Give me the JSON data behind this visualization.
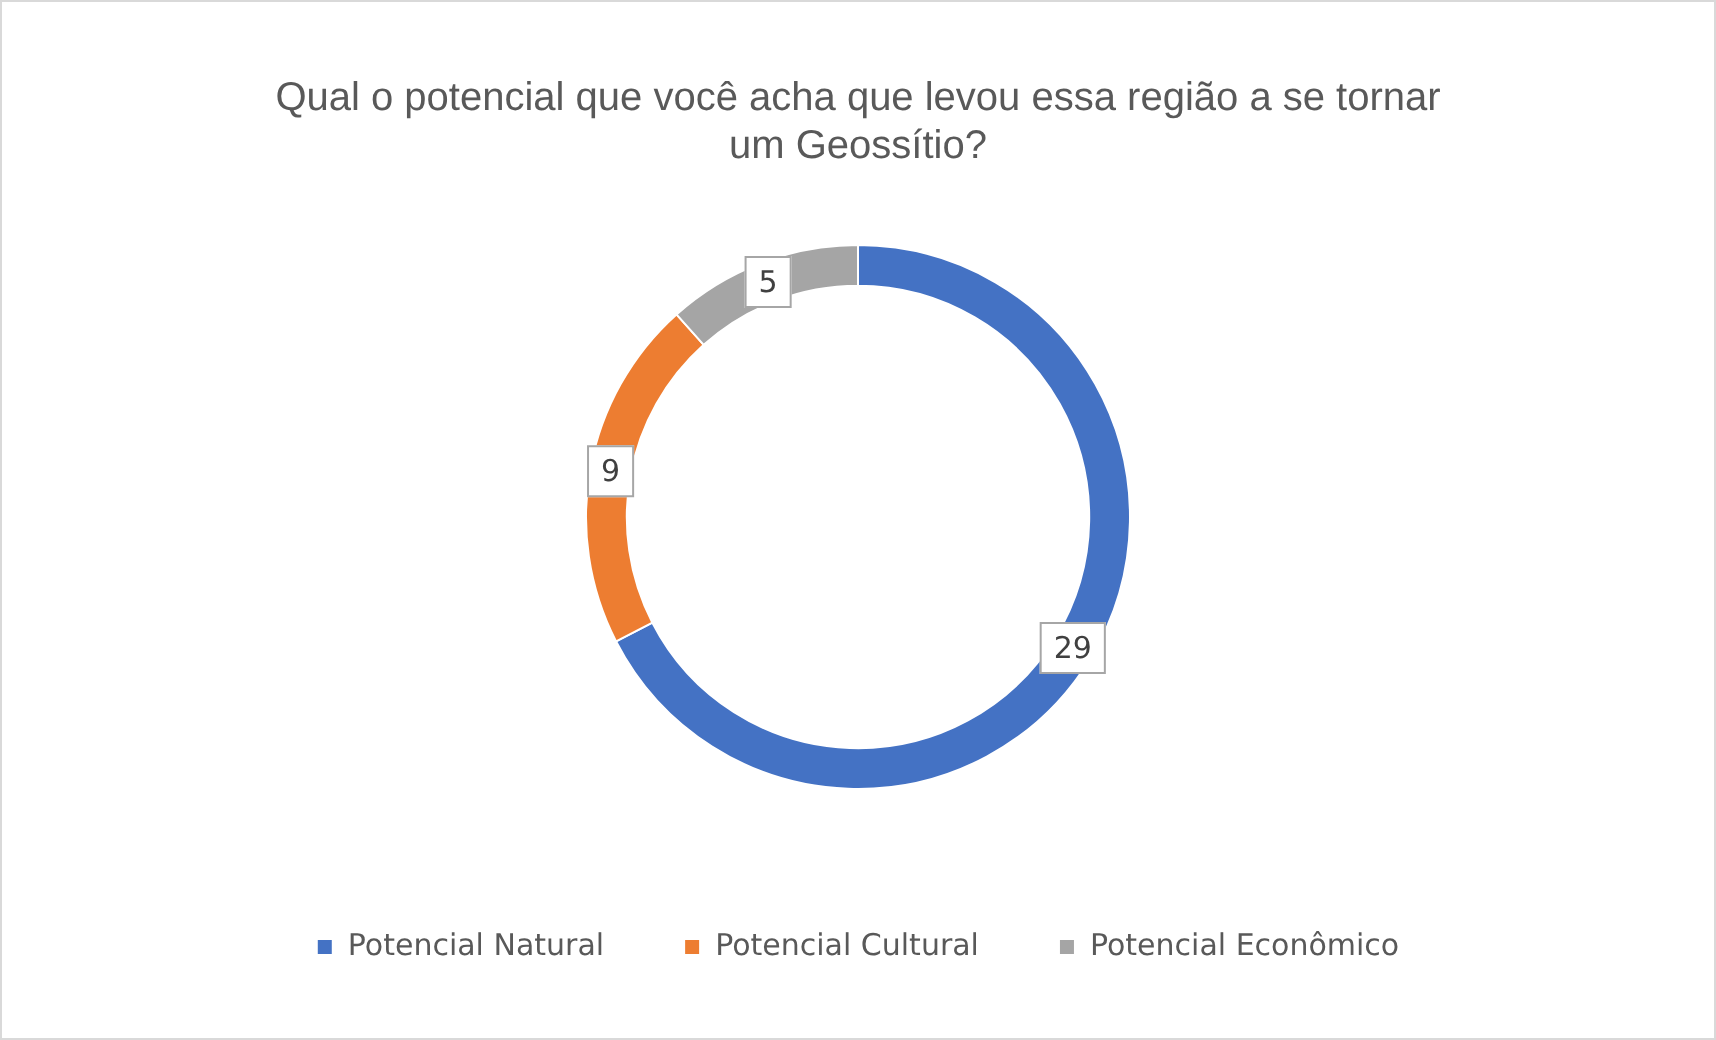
{
  "chart_data": {
    "type": "donut",
    "title": "Qual o potencial que você acha que levou essa região a se tornar um Geossítio?",
    "categories": [
      "Potencial Natural",
      "Potencial Cultural",
      "Potencial Econômico"
    ],
    "values": [
      29,
      9,
      5
    ],
    "colors": [
      "#4472c4",
      "#ed7d31",
      "#a5a5a5"
    ],
    "data_labels": true,
    "legend": "bottom"
  }
}
